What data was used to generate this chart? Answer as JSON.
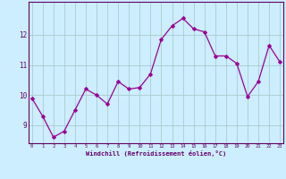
{
  "x": [
    0,
    1,
    2,
    3,
    4,
    5,
    6,
    7,
    8,
    9,
    10,
    11,
    12,
    13,
    14,
    15,
    16,
    17,
    18,
    19,
    20,
    21,
    22,
    23
  ],
  "y": [
    9.9,
    9.3,
    8.6,
    8.8,
    9.5,
    10.2,
    10.0,
    9.7,
    10.45,
    10.2,
    10.25,
    10.7,
    11.85,
    12.3,
    12.55,
    12.2,
    12.1,
    11.3,
    11.3,
    11.05,
    9.95,
    10.45,
    11.65,
    11.1
  ],
  "line_color": "#990099",
  "marker": "D",
  "marker_color": "#990099",
  "bg_color": "#cceeff",
  "grid_color": "#aacccc",
  "xlabel": "Windchill (Refroidissement éolien,°C)",
  "xlabel_color": "#660066",
  "tick_color": "#660066",
  "axis_color": "#660066",
  "ylim": [
    8.4,
    13.1
  ],
  "yticks": [
    9,
    10,
    11,
    12
  ],
  "xticks": [
    0,
    1,
    2,
    3,
    4,
    5,
    6,
    7,
    8,
    9,
    10,
    11,
    12,
    13,
    14,
    15,
    16,
    17,
    18,
    19,
    20,
    21,
    22,
    23
  ],
  "xlim": [
    -0.3,
    23.3
  ]
}
